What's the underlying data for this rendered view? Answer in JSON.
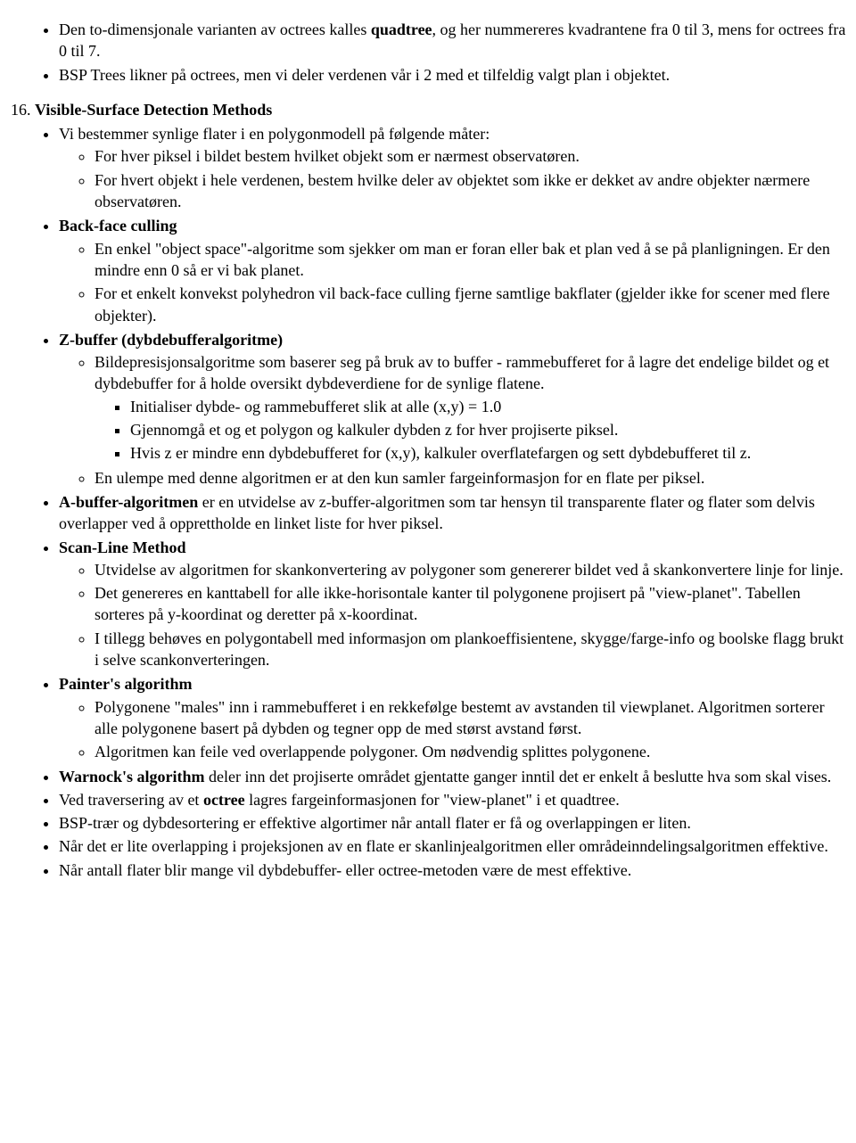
{
  "intro": {
    "li1_a": "Den to-dimensjonale varianten av octrees kalles ",
    "li1_b": "quadtree",
    "li1_c": ", og her nummereres kvadrantene fra 0 til 3, mens for octrees fra 0 til 7.",
    "li2": "BSP Trees likner på octrees, men vi deler verdenen vår i 2 med et tilfeldig valgt plan i objektet."
  },
  "section": {
    "num": "16.",
    "title": "Visible-Surface Detection Methods"
  },
  "vsb": {
    "intro": "Vi bestemmer synlige flater i en polygonmodell på følgende måter:",
    "a": "For hver piksel i bildet bestem hvilket objekt som er nærmest observatøren.",
    "b": "For hvert objekt i hele verdenen, bestem hvilke deler av objektet som ikke er dekket av andre objekter nærmere observatøren."
  },
  "backface": {
    "title": "Back-face culling",
    "a": "En enkel \"object space\"-algoritme som sjekker om man er foran eller bak et plan ved å se på planligningen. Er den mindre enn 0 så er vi bak planet.",
    "b": "For et enkelt konvekst polyhedron vil back-face culling fjerne samtlige bakflater (gjelder ikke for scener med flere objekter)."
  },
  "zbuf": {
    "title": "Z-buffer (dybdebufferalgoritme)",
    "a": "Bildepresisjonsalgoritme som baserer seg på bruk av to buffer - rammebufferet for å lagre det endelige bildet og et dybdebuffer for å holde oversikt dybdeverdiene for de synlige flatene.",
    "a1": "Initialiser dybde- og rammebufferet slik at alle (x,y) = 1.0",
    "a2": "Gjennomgå et og et polygon og kalkuler dybden z for hver projiserte piksel.",
    "a3": "Hvis z er mindre enn dybdebufferet for (x,y), kalkuler overflatefargen og sett dybdebufferet til z.",
    "b": "En ulempe med denne algoritmen er at den kun samler fargeinformasjon for en flate per piksel."
  },
  "abuf": {
    "bold": "A-buffer-algoritmen",
    "rest": " er en utvidelse av z-buffer-algoritmen som tar hensyn til transparente flater og flater som delvis overlapper ved å opprettholde en linket liste for hver piksel."
  },
  "scan": {
    "title": "Scan-Line Method",
    "a": "Utvidelse av algoritmen for skankonvertering av polygoner som genererer bildet ved å skankonvertere linje for linje.",
    "b": "Det genereres en kanttabell for alle ikke-horisontale kanter til polygonene projisert på \"view-planet\". Tabellen sorteres på y-koordinat og deretter på x-koordinat.",
    "c": "I tillegg behøves en polygontabell med informasjon om plankoeffisientene, skygge/farge-info og boolske flagg brukt i selve scankonverteringen."
  },
  "painter": {
    "title": "Painter's algorithm",
    "a": "Polygonene \"males\" inn i rammebufferet i en rekkefølge bestemt av avstanden til viewplanet. Algoritmen sorterer alle polygonene basert på dybden og tegner opp de med størst avstand først.",
    "b": "Algoritmen kan feile ved overlappende polygoner. Om nødvendig splittes polygonene."
  },
  "warnock": {
    "bold": "Warnock's algorithm",
    "rest": " deler inn det projiserte området gjentatte ganger inntil det er enkelt å beslutte hva som skal vises."
  },
  "octree": {
    "pre": "Ved traversering av et ",
    "bold": "octree",
    "post": " lagres fargeinformasjonen for \"view-planet\" i et quadtree."
  },
  "bsp": "BSP-trær og dybdesortering er effektive algortimer når antall flater er få og overlappingen er liten.",
  "scanline2": "Når det er lite overlapping i projeksjonen av en flate er skanlinjealgoritmen eller områdeinndelingsalgoritmen effektive.",
  "many": "Når antall flater blir mange vil dybdebuffer- eller octree-metoden være de mest effektive."
}
